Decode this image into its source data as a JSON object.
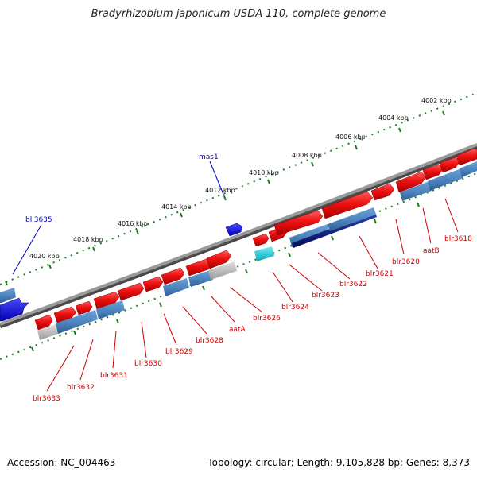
{
  "title": "Bradyrhizobium japonicum USDA 110, complete genome",
  "footer": {
    "accession": "Accession: NC_004463",
    "summary": "Topology: circular; Length: 9,105,828 bp; Genes: 8,373"
  },
  "colors": {
    "forward_gene": "#e8101a",
    "reverse_gene": "#1010f0",
    "feature_blue": "#4f86c0",
    "feature_dark": "#0b1a7a",
    "feature_grey": "#b8b8b8",
    "feature_cyan": "#1cc7d6",
    "backbone": "#7a7a7a",
    "ticks": "#1e7a1e",
    "label_red": "#cc0000",
    "label_blue": "#0000cc"
  },
  "scale_labels": [
    "4002 kbp",
    "4004 kbp",
    "4006 kbp",
    "4008 kbp",
    "4010 kbp",
    "4012 kbp",
    "4014 kbp",
    "4016 kbp",
    "4018 kbp",
    "4020 kbp"
  ],
  "top_labels": [
    "bll3635",
    "mas1"
  ],
  "bottom_labels": [
    "blr3618",
    "aatB",
    "blr3620",
    "blr3621",
    "blr3622",
    "blr3623",
    "blr3624",
    "blr3626",
    "aatA",
    "blr3628",
    "blr3629",
    "blr3630",
    "blr3631",
    "blr3632",
    "blr3633"
  ]
}
